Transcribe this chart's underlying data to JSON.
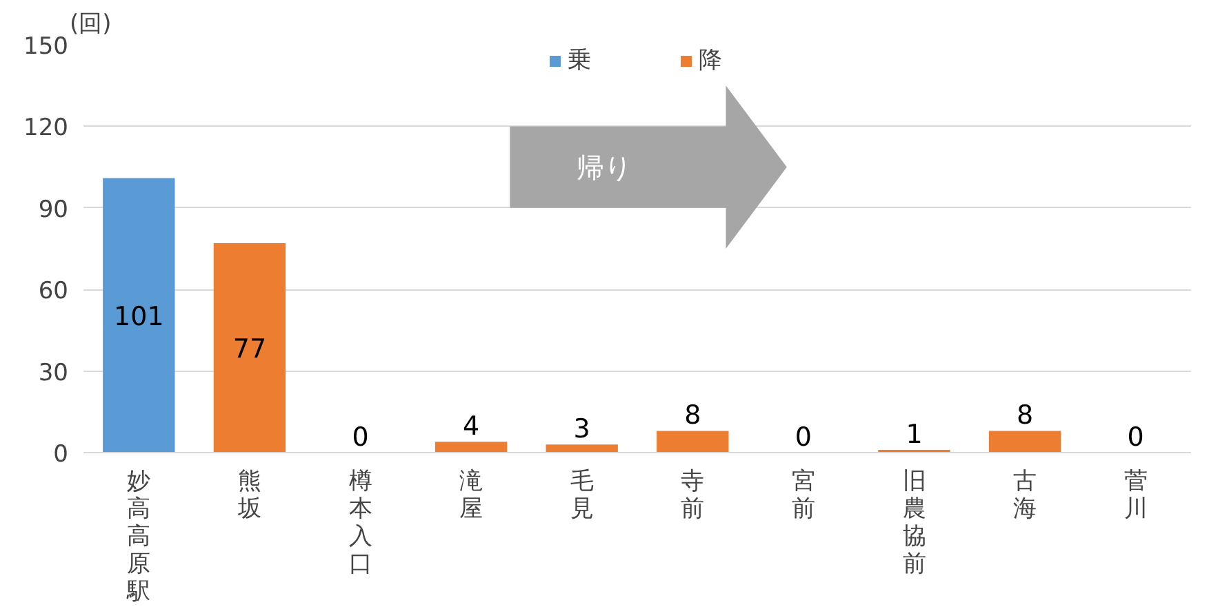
{
  "chart_data": {
    "type": "bar",
    "stacked": true,
    "ylabel": "(回)",
    "categories": [
      "妙高高原駅",
      "熊坂",
      "樽本入口",
      "滝屋",
      "毛見",
      "寺前",
      "宮前",
      "旧農協前",
      "古海",
      "菅川"
    ],
    "series": [
      {
        "name": "乗",
        "color": "#5b9bd5",
        "values": [
          101,
          0,
          0,
          0,
          0,
          0,
          0,
          0,
          0,
          0
        ],
        "value_labels": [
          "101",
          null,
          null,
          null,
          null,
          null,
          null,
          null,
          null,
          null
        ]
      },
      {
        "name": "降",
        "color": "#ed7d31",
        "values": [
          0,
          77,
          0,
          4,
          3,
          8,
          0,
          1,
          8,
          0
        ],
        "value_labels": [
          null,
          "77",
          "0",
          "4",
          "3",
          "8",
          "0",
          "1",
          "8",
          "0"
        ]
      }
    ],
    "ylim": [
      0,
      150
    ],
    "yticks": [
      0,
      30,
      60,
      90,
      120,
      150
    ],
    "grid": "y",
    "legend": "top",
    "annotations": [
      "帰り"
    ]
  }
}
